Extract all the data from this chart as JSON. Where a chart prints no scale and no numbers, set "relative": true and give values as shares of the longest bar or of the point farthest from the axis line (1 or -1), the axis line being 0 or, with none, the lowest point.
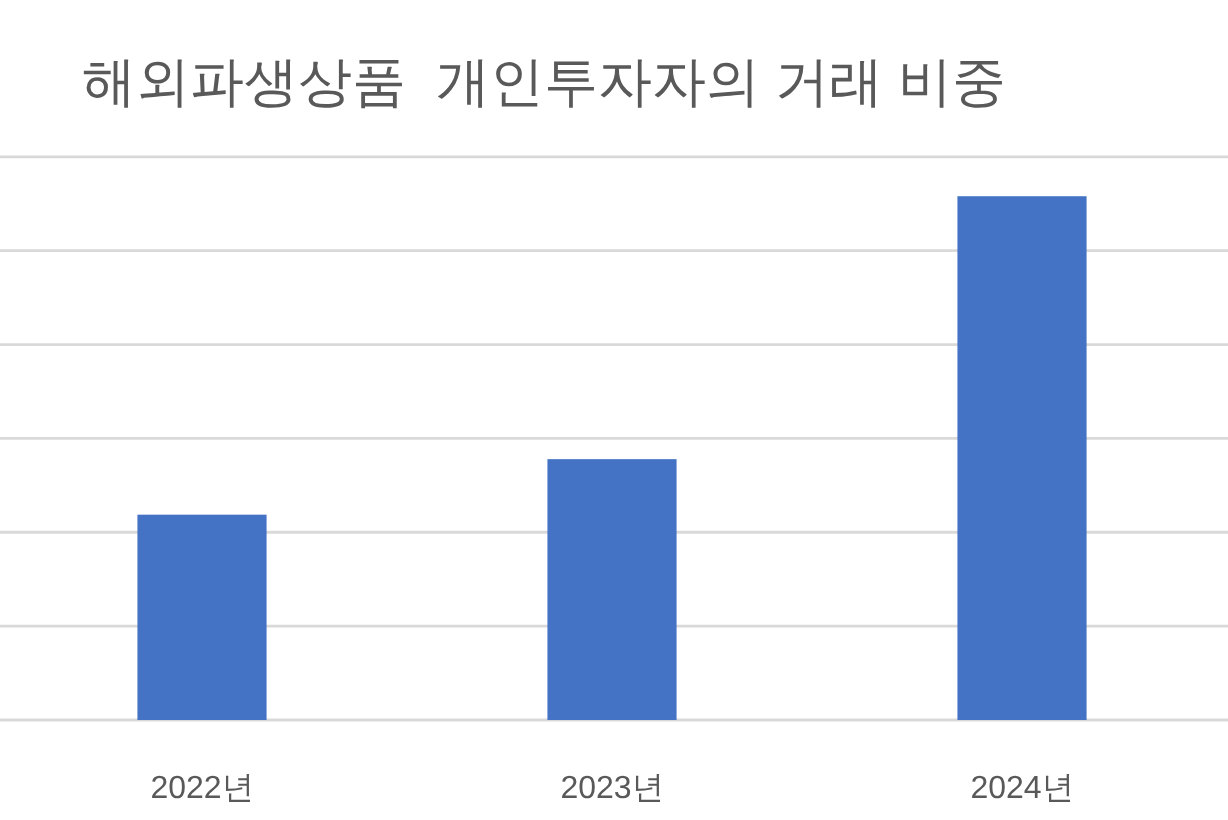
{
  "chart_data": {
    "type": "bar",
    "title": "해외파생상품  개인투자자의 거래 비중",
    "categories": [
      "2022년",
      "2023년",
      "2024년"
    ],
    "values": [
      0.392,
      0.498,
      1
    ],
    "color": "#4472c4",
    "relative": true,
    "grid": true
  }
}
